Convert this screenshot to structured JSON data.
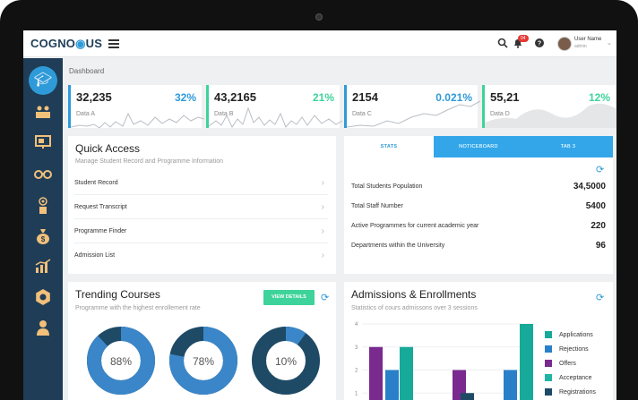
{
  "app": {
    "logo_prefix": "COGNO",
    "logo_suffix": "US",
    "logo_mid": "◉"
  },
  "header": {
    "notifications_count": "04",
    "user_name": "User Name",
    "user_role": "admin"
  },
  "breadcrumb": "Dashboard",
  "stats": [
    {
      "value": "32,235",
      "percent": "32%",
      "label": "Data A",
      "color": "#2f9ad8"
    },
    {
      "value": "43,2165",
      "percent": "21%",
      "label": "Data B",
      "color": "#3ed39a"
    },
    {
      "value": "2154",
      "percent": "0.021%",
      "label": "Data C",
      "color": "#2f9ad8"
    },
    {
      "value": "55,21",
      "percent": "12%",
      "label": "Data D",
      "color": "#3ed39a"
    }
  ],
  "quick_access": {
    "title": "Quick Access",
    "subtitle": "Manage Student Record and Programme Information",
    "items": [
      "Student Record",
      "Request Transcript",
      "Programme Finder",
      "Admission List"
    ]
  },
  "stats_panel": {
    "tabs": [
      "STATS",
      "NOTICEBOARD",
      "TAB 3"
    ],
    "rows": [
      {
        "label": "Total Students Population",
        "value": "34,5000"
      },
      {
        "label": "Total Staff Number",
        "value": "5400"
      },
      {
        "label": "Active Programmes for current academic year",
        "value": "220"
      },
      {
        "label": "Departments within the University",
        "value": "96"
      }
    ]
  },
  "trending": {
    "title": "Trending Courses",
    "subtitle": "Programme with the highest enrollement rate",
    "button": "VIEW DETAILS",
    "donuts": [
      {
        "label": "88%",
        "value": 0.88
      },
      {
        "label": "78%",
        "value": 0.78
      },
      {
        "label": "10%",
        "value": 0.1
      }
    ]
  },
  "admissions": {
    "title": "Admissions & Enrollments",
    "subtitle": "Statistics of cours admissons over 3 sessions",
    "legend": [
      {
        "name": "Applications",
        "color": "#17a99a"
      },
      {
        "name": "Rejections",
        "color": "#2a7fc9"
      },
      {
        "name": "Offers",
        "color": "#7a2a8f"
      },
      {
        "name": "Acceptance",
        "color": "#1fb5a4"
      },
      {
        "name": "Registrations",
        "color": "#1e4a66"
      }
    ]
  },
  "chart_data": {
    "type": "bar",
    "ylim": [
      0,
      4
    ],
    "yticks": [
      "4",
      "3",
      "2",
      "1"
    ],
    "series": [
      {
        "name": "Offers",
        "values": [
          3,
          2
        ]
      },
      {
        "name": "Rejections",
        "values": [
          2,
          2
        ]
      },
      {
        "name": "Applications",
        "values": [
          3,
          4
        ]
      },
      {
        "name": "Registrations",
        "values": [
          1
        ]
      }
    ]
  }
}
